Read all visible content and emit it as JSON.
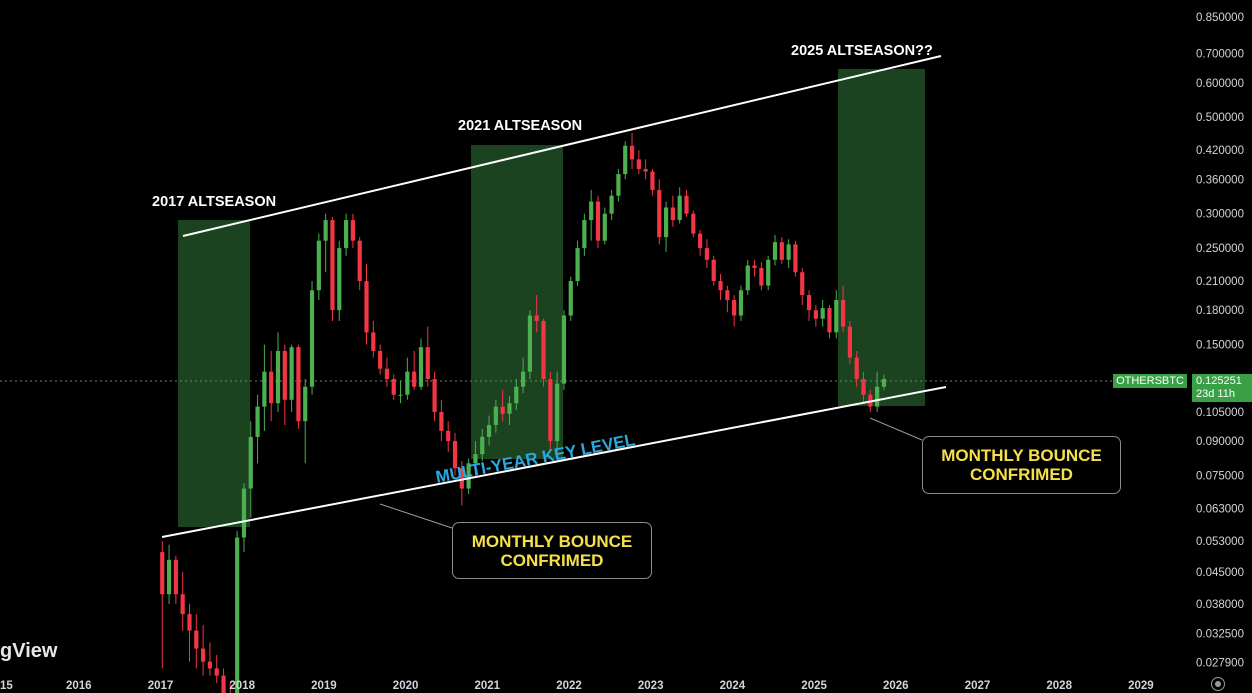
{
  "chart_data": {
    "type": "candlestick",
    "symbol": "OTHERSBTC",
    "y_scale": "log",
    "ylim": [
      0.0265,
      0.93
    ],
    "y_ticks": [
      "0.850000",
      "0.700000",
      "0.600000",
      "0.500000",
      "0.420000",
      "0.360000",
      "0.300000",
      "0.250000",
      "0.210000",
      "0.180000",
      "0.150000",
      "0.125251",
      "0.105000",
      "0.090000",
      "0.075000",
      "0.063000",
      "0.053000",
      "0.045000",
      "0.038000",
      "0.032500",
      "0.027900"
    ],
    "x_ticks": [
      "15",
      "2016",
      "2017",
      "2018",
      "2019",
      "2020",
      "2021",
      "2022",
      "2023",
      "2024",
      "2025",
      "2026",
      "2027",
      "2028",
      "2029"
    ],
    "last_price": "0.125251",
    "countdown": "23d 11h",
    "colors": {
      "up": "#4caf50",
      "down": "#f23645",
      "zone": "#1f4a22",
      "channel": "#ffffff",
      "accent_text": "#f5e04a",
      "key_level": "#29a9e0"
    },
    "candles": [
      {
        "o": 0.05,
        "h": 0.053,
        "l": 0.027,
        "c": 0.04
      },
      {
        "o": 0.04,
        "h": 0.052,
        "l": 0.038,
        "c": 0.048
      },
      {
        "o": 0.048,
        "h": 0.049,
        "l": 0.038,
        "c": 0.04
      },
      {
        "o": 0.04,
        "h": 0.045,
        "l": 0.033,
        "c": 0.036
      },
      {
        "o": 0.036,
        "h": 0.038,
        "l": 0.028,
        "c": 0.033
      },
      {
        "o": 0.033,
        "h": 0.036,
        "l": 0.027,
        "c": 0.03
      },
      {
        "o": 0.03,
        "h": 0.034,
        "l": 0.026,
        "c": 0.028
      },
      {
        "o": 0.028,
        "h": 0.031,
        "l": 0.026,
        "c": 0.027
      },
      {
        "o": 0.027,
        "h": 0.029,
        "l": 0.025,
        "c": 0.026
      },
      {
        "o": 0.026,
        "h": 0.027,
        "l": 0.022,
        "c": 0.023
      },
      {
        "o": 0.023,
        "h": 0.025,
        "l": 0.021,
        "c": 0.022
      },
      {
        "o": 0.022,
        "h": 0.056,
        "l": 0.021,
        "c": 0.054
      },
      {
        "o": 0.054,
        "h": 0.072,
        "l": 0.05,
        "c": 0.07
      },
      {
        "o": 0.07,
        "h": 0.1,
        "l": 0.06,
        "c": 0.092
      },
      {
        "o": 0.092,
        "h": 0.115,
        "l": 0.08,
        "c": 0.108
      },
      {
        "o": 0.108,
        "h": 0.15,
        "l": 0.095,
        "c": 0.13
      },
      {
        "o": 0.13,
        "h": 0.145,
        "l": 0.1,
        "c": 0.11
      },
      {
        "o": 0.11,
        "h": 0.16,
        "l": 0.105,
        "c": 0.145
      },
      {
        "o": 0.145,
        "h": 0.15,
        "l": 0.098,
        "c": 0.112
      },
      {
        "o": 0.112,
        "h": 0.15,
        "l": 0.105,
        "c": 0.148
      },
      {
        "o": 0.148,
        "h": 0.15,
        "l": 0.096,
        "c": 0.1
      },
      {
        "o": 0.1,
        "h": 0.125,
        "l": 0.08,
        "c": 0.12
      },
      {
        "o": 0.12,
        "h": 0.21,
        "l": 0.115,
        "c": 0.2
      },
      {
        "o": 0.2,
        "h": 0.27,
        "l": 0.19,
        "c": 0.26
      },
      {
        "o": 0.26,
        "h": 0.3,
        "l": 0.22,
        "c": 0.29
      },
      {
        "o": 0.29,
        "h": 0.295,
        "l": 0.17,
        "c": 0.18
      },
      {
        "o": 0.18,
        "h": 0.26,
        "l": 0.17,
        "c": 0.25
      },
      {
        "o": 0.25,
        "h": 0.3,
        "l": 0.24,
        "c": 0.29
      },
      {
        "o": 0.29,
        "h": 0.3,
        "l": 0.25,
        "c": 0.26
      },
      {
        "o": 0.26,
        "h": 0.265,
        "l": 0.2,
        "c": 0.21
      },
      {
        "o": 0.21,
        "h": 0.23,
        "l": 0.15,
        "c": 0.16
      },
      {
        "o": 0.16,
        "h": 0.17,
        "l": 0.14,
        "c": 0.145
      },
      {
        "o": 0.145,
        "h": 0.15,
        "l": 0.128,
        "c": 0.132
      },
      {
        "o": 0.132,
        "h": 0.14,
        "l": 0.12,
        "c": 0.125
      },
      {
        "o": 0.125,
        "h": 0.128,
        "l": 0.112,
        "c": 0.115
      },
      {
        "o": 0.115,
        "h": 0.124,
        "l": 0.11,
        "c": 0.115
      },
      {
        "o": 0.115,
        "h": 0.14,
        "l": 0.112,
        "c": 0.13
      },
      {
        "o": 0.13,
        "h": 0.145,
        "l": 0.118,
        "c": 0.12
      },
      {
        "o": 0.12,
        "h": 0.155,
        "l": 0.118,
        "c": 0.148
      },
      {
        "o": 0.148,
        "h": 0.165,
        "l": 0.12,
        "c": 0.125
      },
      {
        "o": 0.125,
        "h": 0.13,
        "l": 0.1,
        "c": 0.105
      },
      {
        "o": 0.105,
        "h": 0.112,
        "l": 0.09,
        "c": 0.095
      },
      {
        "o": 0.095,
        "h": 0.1,
        "l": 0.085,
        "c": 0.09
      },
      {
        "o": 0.09,
        "h": 0.094,
        "l": 0.075,
        "c": 0.078
      },
      {
        "o": 0.078,
        "h": 0.081,
        "l": 0.064,
        "c": 0.07
      },
      {
        "o": 0.07,
        "h": 0.082,
        "l": 0.068,
        "c": 0.08
      },
      {
        "o": 0.08,
        "h": 0.09,
        "l": 0.075,
        "c": 0.084
      },
      {
        "o": 0.084,
        "h": 0.096,
        "l": 0.081,
        "c": 0.092
      },
      {
        "o": 0.092,
        "h": 0.103,
        "l": 0.088,
        "c": 0.098
      },
      {
        "o": 0.098,
        "h": 0.112,
        "l": 0.094,
        "c": 0.108
      },
      {
        "o": 0.108,
        "h": 0.118,
        "l": 0.1,
        "c": 0.104
      },
      {
        "o": 0.104,
        "h": 0.114,
        "l": 0.098,
        "c": 0.11
      },
      {
        "o": 0.11,
        "h": 0.125,
        "l": 0.106,
        "c": 0.12
      },
      {
        "o": 0.12,
        "h": 0.14,
        "l": 0.116,
        "c": 0.13
      },
      {
        "o": 0.13,
        "h": 0.18,
        "l": 0.125,
        "c": 0.175
      },
      {
        "o": 0.175,
        "h": 0.195,
        "l": 0.16,
        "c": 0.17
      },
      {
        "o": 0.17,
        "h": 0.172,
        "l": 0.12,
        "c": 0.125
      },
      {
        "o": 0.125,
        "h": 0.13,
        "l": 0.085,
        "c": 0.09
      },
      {
        "o": 0.09,
        "h": 0.13,
        "l": 0.085,
        "c": 0.122
      },
      {
        "o": 0.122,
        "h": 0.18,
        "l": 0.118,
        "c": 0.175
      },
      {
        "o": 0.175,
        "h": 0.215,
        "l": 0.17,
        "c": 0.21
      },
      {
        "o": 0.21,
        "h": 0.26,
        "l": 0.205,
        "c": 0.25
      },
      {
        "o": 0.25,
        "h": 0.3,
        "l": 0.24,
        "c": 0.29
      },
      {
        "o": 0.29,
        "h": 0.34,
        "l": 0.26,
        "c": 0.32
      },
      {
        "o": 0.32,
        "h": 0.33,
        "l": 0.25,
        "c": 0.26
      },
      {
        "o": 0.26,
        "h": 0.31,
        "l": 0.255,
        "c": 0.3
      },
      {
        "o": 0.3,
        "h": 0.34,
        "l": 0.29,
        "c": 0.33
      },
      {
        "o": 0.33,
        "h": 0.38,
        "l": 0.32,
        "c": 0.37
      },
      {
        "o": 0.37,
        "h": 0.44,
        "l": 0.36,
        "c": 0.43
      },
      {
        "o": 0.43,
        "h": 0.46,
        "l": 0.38,
        "c": 0.4
      },
      {
        "o": 0.4,
        "h": 0.42,
        "l": 0.37,
        "c": 0.38
      },
      {
        "o": 0.38,
        "h": 0.4,
        "l": 0.36,
        "c": 0.375
      },
      {
        "o": 0.375,
        "h": 0.38,
        "l": 0.33,
        "c": 0.34
      },
      {
        "o": 0.34,
        "h": 0.36,
        "l": 0.255,
        "c": 0.265
      },
      {
        "o": 0.265,
        "h": 0.32,
        "l": 0.245,
        "c": 0.31
      },
      {
        "o": 0.31,
        "h": 0.33,
        "l": 0.28,
        "c": 0.29
      },
      {
        "o": 0.29,
        "h": 0.345,
        "l": 0.285,
        "c": 0.33
      },
      {
        "o": 0.33,
        "h": 0.34,
        "l": 0.295,
        "c": 0.3
      },
      {
        "o": 0.3,
        "h": 0.305,
        "l": 0.265,
        "c": 0.27
      },
      {
        "o": 0.27,
        "h": 0.275,
        "l": 0.24,
        "c": 0.25
      },
      {
        "o": 0.25,
        "h": 0.262,
        "l": 0.225,
        "c": 0.235
      },
      {
        "o": 0.235,
        "h": 0.24,
        "l": 0.205,
        "c": 0.21
      },
      {
        "o": 0.21,
        "h": 0.218,
        "l": 0.19,
        "c": 0.2
      },
      {
        "o": 0.2,
        "h": 0.205,
        "l": 0.178,
        "c": 0.19
      },
      {
        "o": 0.19,
        "h": 0.195,
        "l": 0.165,
        "c": 0.175
      },
      {
        "o": 0.175,
        "h": 0.205,
        "l": 0.17,
        "c": 0.2
      },
      {
        "o": 0.2,
        "h": 0.235,
        "l": 0.195,
        "c": 0.228
      },
      {
        "o": 0.228,
        "h": 0.235,
        "l": 0.215,
        "c": 0.225
      },
      {
        "o": 0.225,
        "h": 0.232,
        "l": 0.2,
        "c": 0.205
      },
      {
        "o": 0.205,
        "h": 0.24,
        "l": 0.2,
        "c": 0.235
      },
      {
        "o": 0.235,
        "h": 0.268,
        "l": 0.228,
        "c": 0.258
      },
      {
        "o": 0.258,
        "h": 0.265,
        "l": 0.23,
        "c": 0.235
      },
      {
        "o": 0.235,
        "h": 0.262,
        "l": 0.225,
        "c": 0.255
      },
      {
        "o": 0.255,
        "h": 0.26,
        "l": 0.215,
        "c": 0.22
      },
      {
        "o": 0.22,
        "h": 0.225,
        "l": 0.185,
        "c": 0.195
      },
      {
        "o": 0.195,
        "h": 0.2,
        "l": 0.17,
        "c": 0.18
      },
      {
        "o": 0.18,
        "h": 0.185,
        "l": 0.165,
        "c": 0.172
      },
      {
        "o": 0.172,
        "h": 0.19,
        "l": 0.165,
        "c": 0.182
      },
      {
        "o": 0.182,
        "h": 0.185,
        "l": 0.155,
        "c": 0.16
      },
      {
        "o": 0.16,
        "h": 0.2,
        "l": 0.155,
        "c": 0.19
      },
      {
        "o": 0.19,
        "h": 0.205,
        "l": 0.16,
        "c": 0.165
      },
      {
        "o": 0.165,
        "h": 0.17,
        "l": 0.135,
        "c": 0.14
      },
      {
        "o": 0.14,
        "h": 0.145,
        "l": 0.12,
        "c": 0.125
      },
      {
        "o": 0.125,
        "h": 0.13,
        "l": 0.11,
        "c": 0.115
      },
      {
        "o": 0.115,
        "h": 0.118,
        "l": 0.105,
        "c": 0.108
      },
      {
        "o": 0.108,
        "h": 0.13,
        "l": 0.105,
        "c": 0.12
      },
      {
        "o": 0.12,
        "h": 0.128,
        "l": 0.118,
        "c": 0.125
      }
    ]
  },
  "annotations": {
    "altseason_2017": "2017 ALTSEASON",
    "altseason_2021": "2021 ALTSEASON",
    "altseason_2025": "2025 ALTSEASON??",
    "key_level": "MULTI-YEAR KEY LEVEL",
    "bounce_1": {
      "line1": "MONTHLY BOUNCE",
      "line2": "CONFRIMED"
    },
    "bounce_2": {
      "line1": "MONTHLY BOUNCE",
      "line2": "CONFRIMED"
    }
  },
  "watermark": "gView"
}
